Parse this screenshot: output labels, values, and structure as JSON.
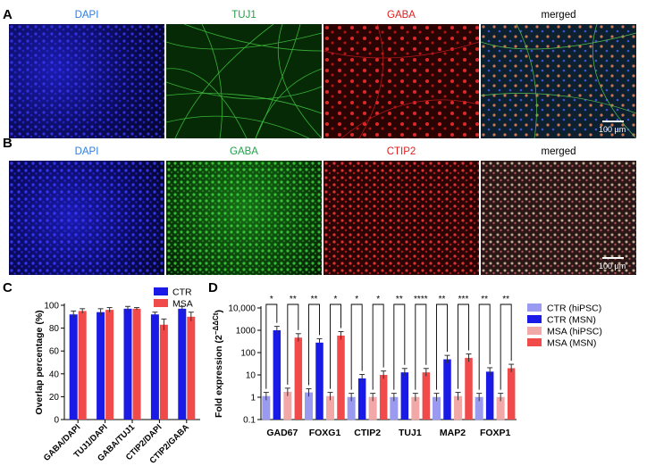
{
  "panels": {
    "A": "A",
    "B": "B",
    "C": "C",
    "D": "D"
  },
  "row_a": {
    "labels": [
      "DAPI",
      "TUJ1",
      "GABA",
      "merged"
    ],
    "colors": [
      "#2f7de0",
      "#22a04a",
      "#e02020",
      "#000000"
    ],
    "scale": "100 µm"
  },
  "row_b": {
    "labels": [
      "DAPI",
      "GABA",
      "CTIP2",
      "merged"
    ],
    "colors": [
      "#2f7de0",
      "#22a04a",
      "#e02020",
      "#000000"
    ],
    "scale": "100 µm"
  },
  "chart_data": [
    {
      "type": "bar",
      "panel": "C",
      "ylabel": "Overlap percentage (%)",
      "ylim": [
        0,
        100
      ],
      "yticks": [
        "0",
        "20",
        "40",
        "60",
        "80",
        "100"
      ],
      "categories": [
        "GABA/DAPI",
        "TUJ1/DAPI",
        "GABA/TUJ1",
        "CTIP2/DAPI",
        "CTIP2/GABA"
      ],
      "series": [
        {
          "name": "CTR",
          "color": "#1a1ae6",
          "values": [
            92,
            94,
            97,
            92,
            97
          ],
          "errors": [
            3,
            3,
            2,
            2,
            2
          ]
        },
        {
          "name": "MSA",
          "color": "#f04a4a",
          "values": [
            95,
            96,
            97,
            83,
            90
          ],
          "errors": [
            2,
            2,
            1,
            5,
            4
          ]
        }
      ],
      "legend": [
        "CTR",
        "MSA"
      ]
    },
    {
      "type": "bar",
      "panel": "D",
      "ylabel": "Fold expression (2^-ΔΔCt)",
      "ylabel_main": "Fold expression (2",
      "ylabel_sup": "−ΔΔCt",
      "ylabel_end": ")",
      "yscale": "log",
      "ylim": [
        0.1,
        10000
      ],
      "yticks": [
        "0.1",
        "1",
        "10",
        "100",
        "1000",
        "10,000"
      ],
      "categories": [
        "GAD67",
        "FOXG1",
        "CTIP2",
        "TUJ1",
        "MAP2",
        "FOXP1"
      ],
      "series": [
        {
          "name": "CTR (hiPSC)",
          "color": "#9a9af0",
          "values": [
            1.1,
            1.6,
            1.0,
            1.0,
            1.0,
            1.0
          ]
        },
        {
          "name": "CTR (MSN)",
          "color": "#1a1ae6",
          "values": [
            1000,
            280,
            7,
            13,
            50,
            14
          ]
        },
        {
          "name": "MSA (hiPSC)",
          "color": "#f3a8a8",
          "values": [
            1.7,
            1.1,
            1.0,
            1.0,
            1.1,
            1.0
          ]
        },
        {
          "name": "MSA (MSN)",
          "color": "#f04a4a",
          "values": [
            470,
            580,
            10,
            13,
            58,
            20
          ]
        }
      ],
      "significance": [
        [
          "*",
          "**"
        ],
        [
          "**",
          "*"
        ],
        [
          "*",
          "*"
        ],
        [
          "**",
          "****"
        ],
        [
          "**",
          "***"
        ],
        [
          "**",
          "**"
        ]
      ],
      "legend": [
        "CTR (hiPSC)",
        "CTR (MSN)",
        "MSA (hiPSC)",
        "MSA (MSN)"
      ]
    }
  ]
}
